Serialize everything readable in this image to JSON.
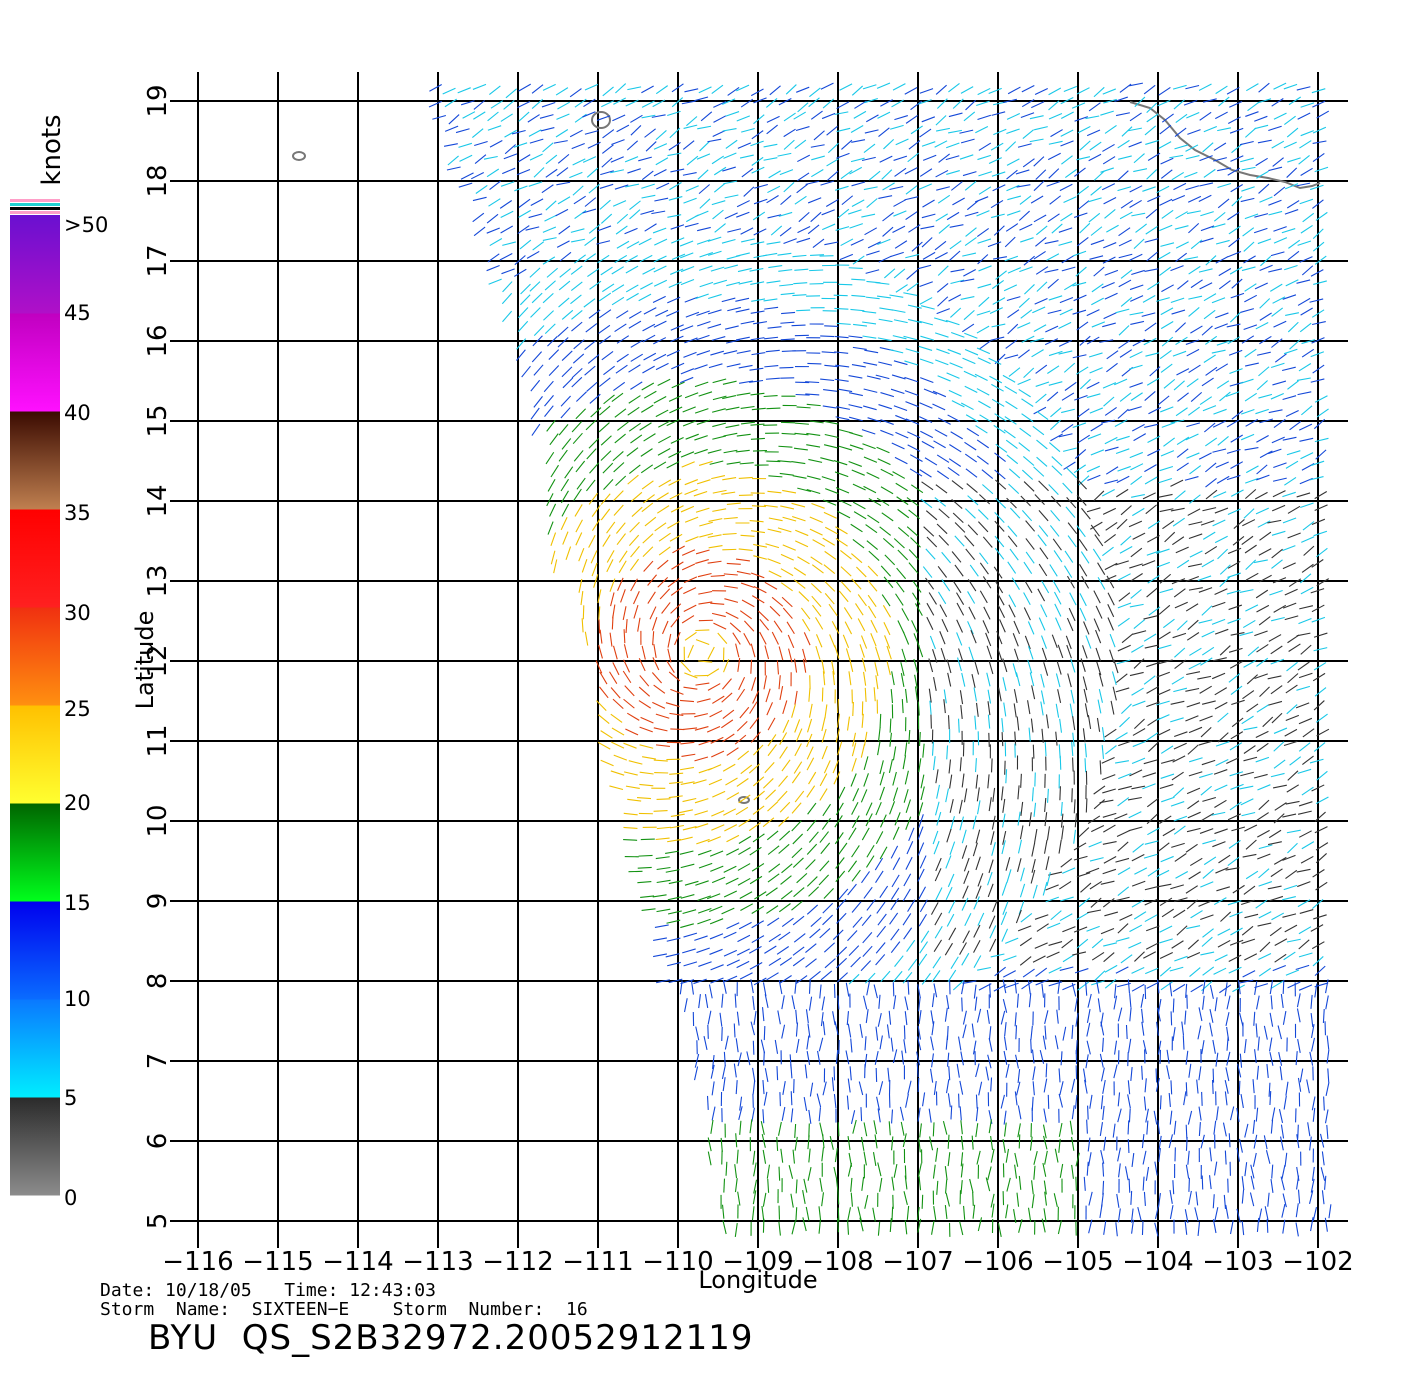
{
  "chart_data": {
    "type": "scatter",
    "plot": "scatterometer wind vector field",
    "xlabel": "Longitude",
    "ylabel": "Latitude",
    "xlim": [
      -116,
      -102
    ],
    "ylim": [
      5,
      19
    ],
    "x_ticks": [
      "−116",
      "−115",
      "−114",
      "−113",
      "−112",
      "−111",
      "−110",
      "−109",
      "−108",
      "−107",
      "−106",
      "−105",
      "−104",
      "−103",
      "−102"
    ],
    "y_ticks": [
      "5",
      "6",
      "7",
      "8",
      "9",
      "10",
      "11",
      "12",
      "13",
      "14",
      "15",
      "16",
      "17",
      "18",
      "19"
    ],
    "grid": true,
    "storm_center": {
      "lon": -109.7,
      "lat": 12.1
    },
    "colorbar": {
      "unit": "knots",
      "labels": [
        "0",
        "5",
        "10",
        "15",
        "20",
        "25",
        "30",
        "35",
        "40",
        "45",
        ">50"
      ],
      "stops": [
        {
          "from": 0,
          "to": 5,
          "top": "#2a2a2a",
          "bottom": "#8c8c8c"
        },
        {
          "from": 5,
          "to": 10,
          "top": "#0a78ff",
          "bottom": "#00eeff"
        },
        {
          "from": 10,
          "to": 15,
          "top": "#0000ee",
          "bottom": "#0a6cff"
        },
        {
          "from": 15,
          "to": 20,
          "top": "#006400",
          "bottom": "#00ff1c"
        },
        {
          "from": 20,
          "to": 25,
          "top": "#ffc000",
          "bottom": "#ffff30"
        },
        {
          "from": 25,
          "to": 30,
          "top": "#f03010",
          "bottom": "#ff9010"
        },
        {
          "from": 30,
          "to": 35,
          "top": "#ff0000",
          "bottom": "#ff2020"
        },
        {
          "from": 35,
          "to": 40,
          "top": "#3a0a00",
          "bottom": "#c08050"
        },
        {
          "from": 40,
          "to": 45,
          "top": "#c000c0",
          "bottom": "#ff10ff"
        },
        {
          "from": 45,
          "to": 50,
          "top": "#6a10d0",
          "bottom": "#b010c8"
        }
      ]
    }
  },
  "info": {
    "date_line": "Date: 10/18/05   Time: 12:43:03",
    "storm_line": "Storm  Name:  SIXTEEN−E    Storm  Number:  16",
    "file_id": "BYU  QS_S2B32972.20052912119"
  },
  "colors": {
    "grid": "#000000",
    "coast": "#777777"
  }
}
